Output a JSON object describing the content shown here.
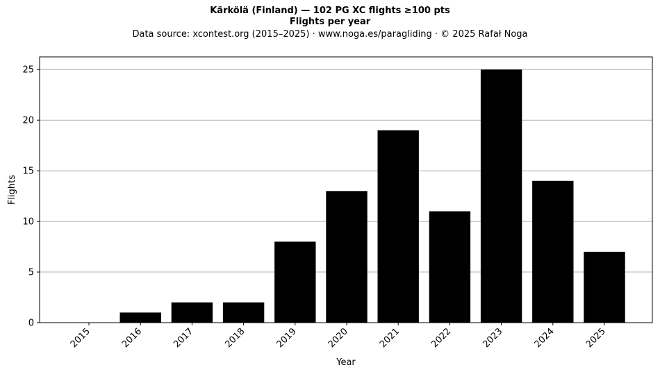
{
  "header": {
    "title": "Kärkölä (Finland)  —  102 PG XC flights ≥100 pts",
    "subtitle": "Flights per year",
    "source": "Data source: xcontest.org (2015–2025)  ·  www.noga.es/paragliding  ·  © 2025 Rafał Noga"
  },
  "chart_data": {
    "type": "bar",
    "title": "Kärkölä (Finland)  —  102 PG XC flights ≥100 pts",
    "subtitle": "Flights per year",
    "xlabel": "Year",
    "ylabel": "Flights",
    "categories": [
      "2015",
      "2016",
      "2017",
      "2018",
      "2019",
      "2020",
      "2021",
      "2022",
      "2023",
      "2024",
      "2025"
    ],
    "values": [
      0,
      1,
      2,
      2,
      8,
      13,
      19,
      11,
      25,
      14,
      7
    ],
    "ylim": [
      0,
      26.25
    ],
    "yticks": [
      0,
      5,
      10,
      15,
      20,
      25
    ],
    "grid": "horizontal",
    "bar_color": "#000000",
    "gridline_color": "#b0b0b0"
  }
}
